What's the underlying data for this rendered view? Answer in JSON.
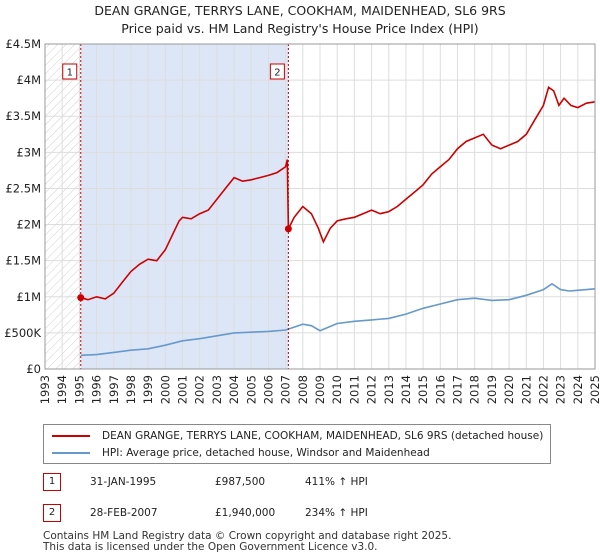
{
  "title_line1": "DEAN GRANGE, TERRYS LANE, COOKHAM, MAIDENHEAD, SL6 9RS",
  "title_line2": "Price paid vs. HM Land Registry's House Price Index (HPI)",
  "chart_data": {
    "type": "line",
    "xlim": [
      1993,
      2025
    ],
    "ylim": [
      0,
      4500000
    ],
    "y_ticks": [
      0,
      500000,
      1000000,
      1500000,
      2000000,
      2500000,
      3000000,
      3500000,
      4000000,
      4500000
    ],
    "y_tick_labels": [
      "£0",
      "£500K",
      "£1M",
      "£1.5M",
      "£2M",
      "£2.5M",
      "£3M",
      "£3.5M",
      "£4M",
      "£4.5M"
    ],
    "x_ticks": [
      1993,
      1994,
      1995,
      1996,
      1997,
      1998,
      1999,
      2000,
      2001,
      2002,
      2003,
      2004,
      2005,
      2006,
      2007,
      2008,
      2009,
      2010,
      2011,
      2012,
      2013,
      2014,
      2015,
      2016,
      2017,
      2018,
      2019,
      2020,
      2021,
      2022,
      2023,
      2024,
      2025
    ],
    "x_tick_labels": [
      "1993",
      "1994",
      "1995",
      "1996",
      "1997",
      "1998",
      "1999",
      "2000",
      "2001",
      "2002",
      "2003",
      "2004",
      "2005",
      "2006",
      "2007",
      "2008",
      "2009",
      "2010",
      "2011",
      "2012",
      "2013",
      "2014",
      "2015",
      "2016",
      "2017",
      "2018",
      "2019",
      "2020",
      "2021",
      "2022",
      "2023",
      "2024",
      "2025"
    ],
    "grid": true,
    "colors": {
      "property": "#cc0000",
      "hpi": "#6699cc",
      "shade": "#dde6f7",
      "vline": "#cc0000"
    },
    "series": [
      {
        "name": "DEAN GRANGE, TERRYS LANE, COOKHAM, MAIDENHEAD, SL6 9RS (detached house)",
        "x": [
          1995.08,
          1995.5,
          1996.0,
          1996.5,
          1997.0,
          1997.5,
          1998.0,
          1998.5,
          1999.0,
          1999.5,
          2000.0,
          2000.5,
          2000.8,
          2001.0,
          2001.5,
          2002.0,
          2002.5,
          2003.0,
          2003.5,
          2004.0,
          2004.5,
          2005.0,
          2005.5,
          2006.0,
          2006.5,
          2007.0,
          2007.1,
          2007.16,
          2007.5,
          2008.0,
          2008.5,
          2008.9,
          2009.2,
          2009.6,
          2010.0,
          2010.5,
          2011.0,
          2011.5,
          2012.0,
          2012.5,
          2013.0,
          2013.5,
          2014.0,
          2014.5,
          2015.0,
          2015.5,
          2016.0,
          2016.5,
          2017.0,
          2017.5,
          2018.0,
          2018.5,
          2019.0,
          2019.5,
          2020.0,
          2020.5,
          2021.0,
          2021.5,
          2022.0,
          2022.3,
          2022.6,
          2022.9,
          2023.2,
          2023.6,
          2024.0,
          2024.5,
          2025.0
        ],
        "values": [
          987500,
          960000,
          1000000,
          970000,
          1050000,
          1200000,
          1350000,
          1450000,
          1520000,
          1500000,
          1650000,
          1900000,
          2050000,
          2100000,
          2080000,
          2150000,
          2200000,
          2350000,
          2500000,
          2650000,
          2600000,
          2620000,
          2650000,
          2680000,
          2720000,
          2800000,
          2900000,
          1940000,
          2100000,
          2250000,
          2150000,
          1950000,
          1760000,
          1950000,
          2050000,
          2080000,
          2100000,
          2150000,
          2200000,
          2150000,
          2180000,
          2250000,
          2350000,
          2450000,
          2550000,
          2700000,
          2800000,
          2900000,
          3050000,
          3150000,
          3200000,
          3250000,
          3100000,
          3050000,
          3100000,
          3150000,
          3250000,
          3450000,
          3650000,
          3900000,
          3850000,
          3650000,
          3750000,
          3650000,
          3620000,
          3680000,
          3700000
        ]
      },
      {
        "name": "HPI: Average price, detached house, Windsor and Maidenhead",
        "x": [
          1995.08,
          1996.0,
          1997.0,
          1998.0,
          1999.0,
          2000.0,
          2001.0,
          2002.0,
          2003.0,
          2004.0,
          2005.0,
          2006.0,
          2007.0,
          2007.5,
          2008.0,
          2008.5,
          2009.0,
          2009.5,
          2010.0,
          2011.0,
          2012.0,
          2013.0,
          2014.0,
          2015.0,
          2016.0,
          2017.0,
          2018.0,
          2019.0,
          2020.0,
          2021.0,
          2022.0,
          2022.5,
          2023.0,
          2023.5,
          2024.0,
          2025.0
        ],
        "values": [
          190000,
          200000,
          230000,
          260000,
          280000,
          330000,
          390000,
          420000,
          460000,
          500000,
          510000,
          520000,
          540000,
          580000,
          620000,
          600000,
          530000,
          580000,
          630000,
          660000,
          680000,
          700000,
          760000,
          840000,
          900000,
          960000,
          980000,
          950000,
          960000,
          1020000,
          1100000,
          1180000,
          1100000,
          1080000,
          1090000,
          1110000
        ]
      }
    ],
    "sales": [
      {
        "label": "1",
        "x": 1995.08,
        "value": 987500
      },
      {
        "label": "2",
        "x": 2007.16,
        "value": 1940000
      }
    ]
  },
  "legend": {
    "property_label": "DEAN GRANGE, TERRYS LANE, COOKHAM, MAIDENHEAD, SL6 9RS (detached house)",
    "hpi_label": "HPI: Average price, detached house, Windsor and Maidenhead"
  },
  "sales_table": [
    {
      "num": "1",
      "date": "31-JAN-1995",
      "price": "£987,500",
      "hpi": "411% ↑ HPI"
    },
    {
      "num": "2",
      "date": "28-FEB-2007",
      "price": "£1,940,000",
      "hpi": "234% ↑ HPI"
    }
  ],
  "footer": {
    "line1": "Contains HM Land Registry data © Crown copyright and database right 2025.",
    "line2": "This data is licensed under the Open Government Licence v3.0."
  }
}
